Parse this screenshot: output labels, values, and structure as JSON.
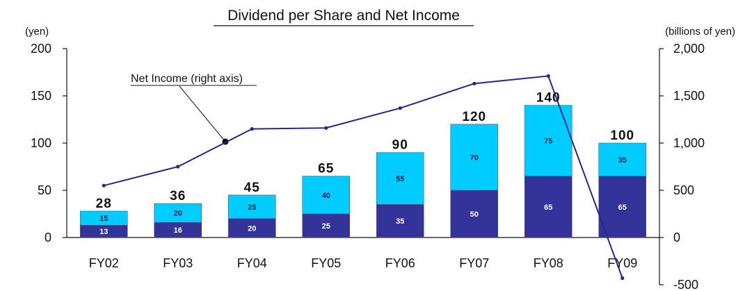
{
  "chart_data": {
    "type": "bar",
    "title": "Dividend per Share and Net Income",
    "y_left_unit": "(yen)",
    "y_right_unit": "(billions of yen)",
    "ylim_left": [
      0,
      200
    ],
    "ylim_right": [
      -500,
      2000
    ],
    "y_left_ticks": [
      "0",
      "50",
      "100",
      "150",
      "200"
    ],
    "y_right_ticks": [
      "-500",
      "0",
      "500",
      "1,000",
      "1,500",
      "2,000"
    ],
    "categories": [
      "FY02",
      "FY03",
      "FY04",
      "FY05",
      "FY06",
      "FY07",
      "FY08",
      "FY09"
    ],
    "series": [
      {
        "values": [
          13,
          16,
          20,
          25,
          35,
          50,
          65,
          65
        ],
        "color": "#33339a",
        "label_color": "#ffffff"
      },
      {
        "values": [
          15,
          20,
          25,
          40,
          55,
          70,
          75,
          35
        ],
        "color": "#00ccff",
        "label_color": "#1a1a4a"
      }
    ],
    "totals": [
      28,
      36,
      45,
      65,
      90,
      120,
      140,
      100
    ],
    "line": {
      "name": "Net Income (right axis)",
      "axis": "right",
      "color": "#1f2a8c",
      "values": [
        550,
        750,
        1150,
        1160,
        1370,
        1630,
        1710,
        -430
      ]
    },
    "annotation": "Net Income (right axis)",
    "grid": false,
    "legend": "none"
  }
}
